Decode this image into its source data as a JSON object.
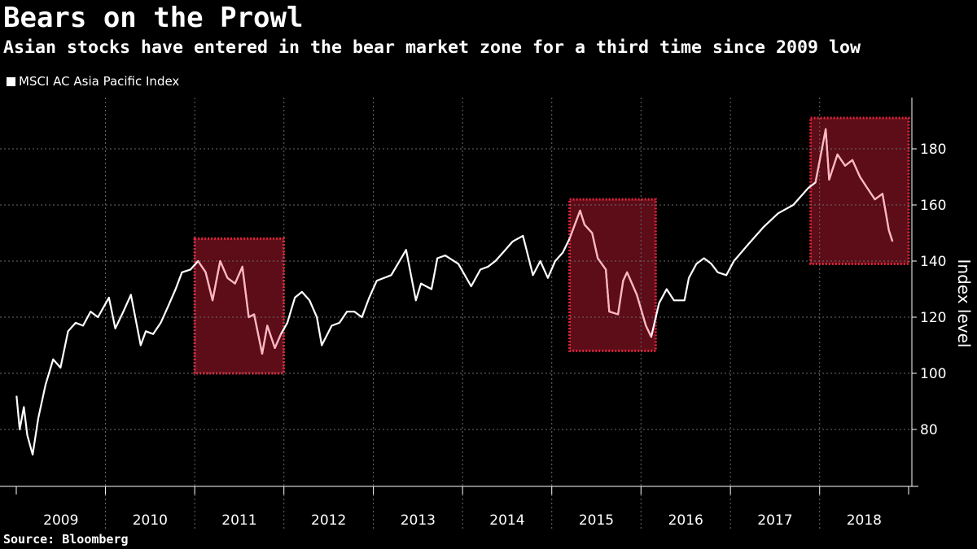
{
  "chart_data": {
    "type": "line",
    "title": "Bears on the Prowl",
    "subtitle": "Asian stocks have entered in the bear market zone for a third time since 2009 low",
    "source": "Source: Bloomberg",
    "ylabel": "Index level",
    "ylim": [
      66,
      190
    ],
    "y_ticks": [
      80,
      100,
      120,
      140,
      160,
      180
    ],
    "x_range": [
      "2009-01-01",
      "2018-12-31"
    ],
    "x_categories": [
      "2009",
      "2010",
      "2011",
      "2012",
      "2013",
      "2014",
      "2015",
      "2016",
      "2017",
      "2018"
    ],
    "grid": true,
    "legend_position": "top-left",
    "series": [
      {
        "name": "MSCI AC Asia Pacific Index",
        "color": "#ffffff",
        "points": [
          [
            "2009-01-02",
            92
          ],
          [
            "2009-01-15",
            80
          ],
          [
            "2009-02-01",
            88
          ],
          [
            "2009-02-15",
            78
          ],
          [
            "2009-03-09",
            71
          ],
          [
            "2009-04-01",
            84
          ],
          [
            "2009-05-01",
            96
          ],
          [
            "2009-06-01",
            105
          ],
          [
            "2009-07-01",
            102
          ],
          [
            "2009-08-01",
            115
          ],
          [
            "2009-09-01",
            118
          ],
          [
            "2009-10-01",
            117
          ],
          [
            "2009-11-01",
            122
          ],
          [
            "2009-12-01",
            120
          ],
          [
            "2010-01-15",
            127
          ],
          [
            "2010-02-10",
            116
          ],
          [
            "2010-03-15",
            122
          ],
          [
            "2010-04-15",
            128
          ],
          [
            "2010-05-25",
            110
          ],
          [
            "2010-06-15",
            115
          ],
          [
            "2010-07-15",
            114
          ],
          [
            "2010-08-15",
            118
          ],
          [
            "2010-09-15",
            124
          ],
          [
            "2010-10-15",
            130
          ],
          [
            "2010-11-10",
            136
          ],
          [
            "2010-12-15",
            137
          ],
          [
            "2011-01-15",
            140
          ],
          [
            "2011-02-15",
            136
          ],
          [
            "2011-03-15",
            126
          ],
          [
            "2011-04-15",
            140
          ],
          [
            "2011-05-15",
            134
          ],
          [
            "2011-06-15",
            132
          ],
          [
            "2011-07-15",
            138
          ],
          [
            "2011-08-10",
            120
          ],
          [
            "2011-09-01",
            121
          ],
          [
            "2011-10-04",
            107
          ],
          [
            "2011-10-25",
            117
          ],
          [
            "2011-11-25",
            109
          ],
          [
            "2011-12-20",
            114
          ],
          [
            "2012-01-15",
            118
          ],
          [
            "2012-02-15",
            127
          ],
          [
            "2012-03-15",
            129
          ],
          [
            "2012-04-15",
            126
          ],
          [
            "2012-05-15",
            120
          ],
          [
            "2012-06-04",
            110
          ],
          [
            "2012-07-15",
            117
          ],
          [
            "2012-08-15",
            118
          ],
          [
            "2012-09-15",
            122
          ],
          [
            "2012-10-15",
            122
          ],
          [
            "2012-11-15",
            120
          ],
          [
            "2012-12-15",
            127
          ],
          [
            "2013-01-15",
            133
          ],
          [
            "2013-03-15",
            135
          ],
          [
            "2013-05-15",
            144
          ],
          [
            "2013-06-24",
            126
          ],
          [
            "2013-07-15",
            132
          ],
          [
            "2013-08-27",
            130
          ],
          [
            "2013-09-20",
            141
          ],
          [
            "2013-10-22",
            142
          ],
          [
            "2013-12-15",
            139
          ],
          [
            "2014-02-05",
            131
          ],
          [
            "2014-03-15",
            137
          ],
          [
            "2014-04-15",
            138
          ],
          [
            "2014-05-15",
            140
          ],
          [
            "2014-06-15",
            143
          ],
          [
            "2014-07-25",
            147
          ],
          [
            "2014-09-05",
            149
          ],
          [
            "2014-10-16",
            135
          ],
          [
            "2014-11-15",
            140
          ],
          [
            "2014-12-16",
            134
          ],
          [
            "2015-01-15",
            140
          ],
          [
            "2015-02-15",
            143
          ],
          [
            "2015-03-15",
            148
          ],
          [
            "2015-04-27",
            158
          ],
          [
            "2015-05-15",
            153
          ],
          [
            "2015-06-15",
            150
          ],
          [
            "2015-07-08",
            141
          ],
          [
            "2015-08-10",
            137
          ],
          [
            "2015-08-24",
            122
          ],
          [
            "2015-09-29",
            121
          ],
          [
            "2015-10-20",
            133
          ],
          [
            "2015-11-05",
            136
          ],
          [
            "2015-12-15",
            128
          ],
          [
            "2016-01-21",
            117
          ],
          [
            "2016-02-12",
            113
          ],
          [
            "2016-03-15",
            125
          ],
          [
            "2016-04-15",
            130
          ],
          [
            "2016-05-15",
            126
          ],
          [
            "2016-06-27",
            126
          ],
          [
            "2016-07-15",
            134
          ],
          [
            "2016-08-15",
            139
          ],
          [
            "2016-09-15",
            141
          ],
          [
            "2016-10-15",
            139
          ],
          [
            "2016-11-10",
            136
          ],
          [
            "2016-12-15",
            135
          ],
          [
            "2017-01-15",
            140
          ],
          [
            "2017-03-15",
            146
          ],
          [
            "2017-05-15",
            152
          ],
          [
            "2017-07-15",
            157
          ],
          [
            "2017-09-15",
            160
          ],
          [
            "2017-11-15",
            166
          ],
          [
            "2017-12-15",
            168
          ],
          [
            "2018-01-26",
            187
          ],
          [
            "2018-02-09",
            169
          ],
          [
            "2018-03-15",
            178
          ],
          [
            "2018-04-15",
            174
          ],
          [
            "2018-05-15",
            176
          ],
          [
            "2018-06-15",
            170
          ],
          [
            "2018-07-15",
            166
          ],
          [
            "2018-08-15",
            162
          ],
          [
            "2018-09-15",
            164
          ],
          [
            "2018-10-11",
            151
          ],
          [
            "2018-10-26",
            147
          ]
        ]
      }
    ],
    "highlight_periods": [
      {
        "start": "2011-01-01",
        "end": "2011-12-31",
        "y_low": 100,
        "y_high": 148
      },
      {
        "start": "2015-03-15",
        "end": "2016-03-01",
        "y_low": 108,
        "y_high": 162
      },
      {
        "start": "2017-11-25",
        "end": "2018-12-31",
        "y_low": 139,
        "y_high": 191
      }
    ],
    "highlight_fill": "#5c0d18",
    "highlight_border": "#e0243c",
    "highlight_line_color": "#ffb6c0"
  }
}
